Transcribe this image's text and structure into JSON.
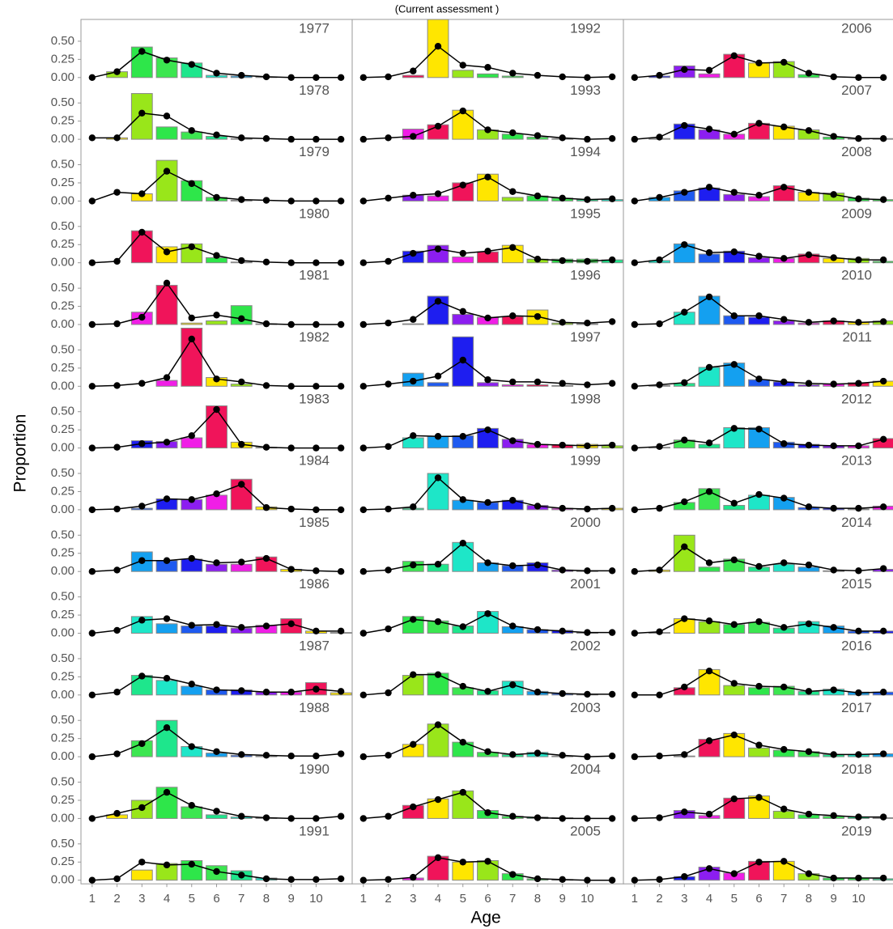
{
  "chart_data": {
    "type": "bar",
    "subtitle": "(Current assessment )",
    "x_label": "Age",
    "y_label": "Proportion",
    "columns": 3,
    "rows": 14,
    "x": [
      1,
      2,
      3,
      4,
      5,
      6,
      7,
      8,
      9,
      10,
      11
    ],
    "xlim": [
      0.55,
      11.45
    ],
    "xticks": [
      1,
      2,
      3,
      4,
      5,
      6,
      7,
      8,
      9,
      10
    ],
    "ylim": [
      -0.05,
      0.8
    ],
    "yticks": [
      {
        "value": 0,
        "label": "0.00"
      },
      {
        "value": 0.25,
        "label": "0.25"
      },
      {
        "value": 0.5,
        "label": "0.50"
      }
    ],
    "cohort_palette": [
      "#1e1ef0",
      "#1e5af0",
      "#14a0f0",
      "#1ee6c8",
      "#1ee68c",
      "#3ce650",
      "#2ee64a",
      "#99e61a",
      "#ffe600",
      "#f0145a",
      "#f01ee6",
      "#8c1ef0"
    ],
    "bar_stroke": "#888888",
    "line_color": "#000000",
    "panels": [
      {
        "year": "1977",
        "observed": [
          0,
          0.08,
          0.42,
          0.27,
          0.2,
          0.03,
          0.02,
          0.01,
          0,
          0,
          0
        ],
        "expected": [
          0,
          0.08,
          0.36,
          0.24,
          0.18,
          0.06,
          0.03,
          0.01,
          0,
          0,
          0
        ]
      },
      {
        "year": "1978",
        "observed": [
          0,
          0.02,
          0.63,
          0.17,
          0.1,
          0.04,
          0.01,
          0,
          0,
          0,
          0
        ],
        "expected": [
          0.02,
          0.02,
          0.36,
          0.32,
          0.12,
          0.06,
          0.02,
          0.01,
          0,
          0,
          0
        ]
      },
      {
        "year": "1979",
        "observed": [
          0,
          0,
          0.1,
          0.56,
          0.28,
          0.05,
          0.01,
          0,
          0,
          0,
          0
        ],
        "expected": [
          0,
          0.12,
          0.1,
          0.41,
          0.24,
          0.05,
          0.02,
          0.01,
          0,
          0,
          0
        ]
      },
      {
        "year": "1980",
        "observed": [
          0,
          0,
          0.44,
          0.22,
          0.26,
          0.07,
          0.01,
          0,
          0,
          0,
          0
        ],
        "expected": [
          0,
          0.02,
          0.42,
          0.15,
          0.22,
          0.1,
          0.03,
          0.01,
          0,
          0,
          0
        ]
      },
      {
        "year": "1981",
        "observed": [
          0,
          0,
          0.17,
          0.54,
          0.02,
          0.05,
          0.26,
          0.01,
          0,
          0,
          0
        ],
        "expected": [
          0,
          0.01,
          0.1,
          0.57,
          0.09,
          0.13,
          0.08,
          0.01,
          0,
          0,
          0
        ]
      },
      {
        "year": "1982",
        "observed": [
          0,
          0,
          0,
          0.08,
          0.8,
          0.12,
          0.03,
          0,
          0,
          0,
          0
        ],
        "expected": [
          0,
          0.01,
          0.04,
          0.12,
          0.65,
          0.1,
          0.06,
          0.01,
          0,
          0,
          0
        ]
      },
      {
        "year": "1983",
        "observed": [
          0,
          0,
          0.1,
          0.09,
          0.14,
          0.58,
          0.08,
          0.01,
          0,
          0,
          0
        ],
        "expected": [
          0,
          0.01,
          0.06,
          0.08,
          0.17,
          0.53,
          0.05,
          0.01,
          0,
          0,
          0
        ]
      },
      {
        "year": "1984",
        "observed": [
          0,
          0,
          0.02,
          0.15,
          0.14,
          0.2,
          0.42,
          0.04,
          0,
          0,
          0
        ],
        "expected": [
          0,
          0.01,
          0.05,
          0.15,
          0.14,
          0.22,
          0.35,
          0.03,
          0.01,
          0,
          0
        ]
      },
      {
        "year": "1985",
        "observed": [
          0,
          0,
          0.27,
          0.15,
          0.17,
          0.1,
          0.1,
          0.2,
          0.03,
          0,
          0
        ],
        "expected": [
          0,
          0.02,
          0.15,
          0.15,
          0.18,
          0.12,
          0.13,
          0.18,
          0.03,
          0.01,
          0
        ]
      },
      {
        "year": "1986",
        "observed": [
          0,
          0,
          0.23,
          0.13,
          0.1,
          0.1,
          0.07,
          0.11,
          0.2,
          0.03,
          0.01
        ],
        "expected": [
          0,
          0.04,
          0.18,
          0.2,
          0.11,
          0.12,
          0.08,
          0.1,
          0.13,
          0.03,
          0.03
        ]
      },
      {
        "year": "1987",
        "observed": [
          0,
          0,
          0.27,
          0.2,
          0.12,
          0.07,
          0.07,
          0.04,
          0.04,
          0.17,
          0.03
        ],
        "expected": [
          0,
          0.04,
          0.26,
          0.23,
          0.15,
          0.07,
          0.06,
          0.04,
          0.04,
          0.08,
          0.05
        ]
      },
      {
        "year": "1988",
        "observed": [
          0,
          0,
          0.22,
          0.5,
          0.14,
          0.05,
          0.02,
          0.01,
          0,
          0,
          0
        ],
        "expected": [
          0,
          0.04,
          0.18,
          0.4,
          0.14,
          0.07,
          0.03,
          0.02,
          0.01,
          0.01,
          0.04
        ]
      },
      {
        "year": "1990",
        "observed": [
          0,
          0.05,
          0.25,
          0.43,
          0.16,
          0.05,
          0.02,
          0.01,
          0,
          0,
          0
        ],
        "expected": [
          0,
          0.07,
          0.15,
          0.36,
          0.18,
          0.1,
          0.03,
          0.01,
          0,
          0,
          0.03
        ]
      },
      {
        "year": "1991",
        "observed": [
          0,
          0,
          0.14,
          0.23,
          0.27,
          0.2,
          0.13,
          0.03,
          0,
          0,
          0
        ],
        "expected": [
          0,
          0.02,
          0.25,
          0.21,
          0.22,
          0.12,
          0.07,
          0.02,
          0.01,
          0.01,
          0.02
        ]
      },
      {
        "year": "1992",
        "observed": [
          0,
          0,
          0.03,
          0.8,
          0.1,
          0.05,
          0.02,
          0,
          0,
          0,
          0
        ],
        "expected": [
          0,
          0.01,
          0.09,
          0.43,
          0.17,
          0.14,
          0.06,
          0.03,
          0.01,
          0,
          0.01
        ]
      },
      {
        "year": "1993",
        "observed": [
          0,
          0,
          0.14,
          0.2,
          0.4,
          0.13,
          0.07,
          0.03,
          0.01,
          0,
          0
        ],
        "expected": [
          0,
          0.02,
          0.04,
          0.18,
          0.39,
          0.13,
          0.09,
          0.05,
          0.02,
          0,
          0.01
        ]
      },
      {
        "year": "1994",
        "observed": [
          0,
          0,
          0.08,
          0.07,
          0.25,
          0.37,
          0.05,
          0.07,
          0.04,
          0.02,
          0.02
        ],
        "expected": [
          0,
          0.04,
          0.08,
          0.1,
          0.22,
          0.33,
          0.13,
          0.07,
          0.04,
          0.02,
          0.03
        ]
      },
      {
        "year": "1995",
        "observed": [
          0,
          0,
          0.16,
          0.24,
          0.08,
          0.15,
          0.24,
          0.05,
          0.05,
          0.05,
          0.04
        ],
        "expected": [
          0,
          0.02,
          0.13,
          0.19,
          0.13,
          0.16,
          0.21,
          0.05,
          0.03,
          0.02,
          0.04
        ]
      },
      {
        "year": "1996",
        "observed": [
          0,
          0,
          0.01,
          0.39,
          0.14,
          0.1,
          0.11,
          0.2,
          0.02,
          0.01,
          0
        ],
        "expected": [
          0,
          0.02,
          0.07,
          0.32,
          0.18,
          0.09,
          0.12,
          0.11,
          0.03,
          0.02,
          0.04
        ]
      },
      {
        "year": "1997",
        "observed": [
          0,
          0,
          0.18,
          0.05,
          0.68,
          0.05,
          0.02,
          0.02,
          0.01,
          0,
          0
        ],
        "expected": [
          0,
          0.03,
          0.07,
          0.14,
          0.36,
          0.09,
          0.06,
          0.06,
          0.04,
          0.02,
          0.04
        ]
      },
      {
        "year": "1998",
        "observed": [
          0,
          0,
          0.14,
          0.16,
          0.17,
          0.27,
          0.12,
          0.05,
          0.04,
          0.05,
          0.03
        ],
        "expected": [
          0,
          0.02,
          0.17,
          0.16,
          0.16,
          0.25,
          0.1,
          0.05,
          0.04,
          0.03,
          0.04
        ]
      },
      {
        "year": "1999",
        "observed": [
          0,
          0,
          0.02,
          0.5,
          0.13,
          0.1,
          0.13,
          0.06,
          0.02,
          0.01,
          0.02
        ],
        "expected": [
          0,
          0.01,
          0.04,
          0.44,
          0.14,
          0.1,
          0.13,
          0.05,
          0.02,
          0.01,
          0.02
        ]
      },
      {
        "year": "2000",
        "observed": [
          0,
          0,
          0.14,
          0.1,
          0.4,
          0.12,
          0.08,
          0.12,
          0.02,
          0.01,
          0
        ],
        "expected": [
          0,
          0.02,
          0.09,
          0.1,
          0.39,
          0.12,
          0.08,
          0.09,
          0.02,
          0.01,
          0.01
        ]
      },
      {
        "year": "2001",
        "observed": [
          0,
          0,
          0.23,
          0.17,
          0.1,
          0.3,
          0.09,
          0.05,
          0.04,
          0.01,
          0
        ],
        "expected": [
          0,
          0.06,
          0.19,
          0.16,
          0.09,
          0.27,
          0.1,
          0.05,
          0.03,
          0.01,
          0.01
        ]
      },
      {
        "year": "2002",
        "observed": [
          0,
          0,
          0.27,
          0.3,
          0.1,
          0.06,
          0.19,
          0.05,
          0.02,
          0.01,
          0
        ],
        "expected": [
          0,
          0.03,
          0.28,
          0.28,
          0.12,
          0.05,
          0.14,
          0.04,
          0.02,
          0.01,
          0.01
        ]
      },
      {
        "year": "2003",
        "observed": [
          0,
          0,
          0.17,
          0.45,
          0.2,
          0.06,
          0.03,
          0.06,
          0.01,
          0,
          0
        ],
        "expected": [
          0,
          0.02,
          0.17,
          0.44,
          0.2,
          0.07,
          0.03,
          0.05,
          0.02,
          0,
          0.01
        ]
      },
      {
        "year": "2004",
        "observed": [
          0,
          0,
          0.18,
          0.27,
          0.38,
          0.11,
          0.03,
          0.02,
          0.01,
          0,
          0
        ],
        "expected": [
          0,
          0.03,
          0.16,
          0.26,
          0.36,
          0.08,
          0.03,
          0.01,
          0,
          0,
          0
        ]
      },
      {
        "year": "2005",
        "observed": [
          0,
          0,
          0.03,
          0.33,
          0.25,
          0.27,
          0.09,
          0.02,
          0.01,
          0,
          0
        ],
        "expected": [
          0,
          0.01,
          0.04,
          0.31,
          0.25,
          0.26,
          0.08,
          0.02,
          0.01,
          0,
          0
        ]
      },
      {
        "year": "2006",
        "observed": [
          0,
          0.02,
          0.16,
          0.05,
          0.32,
          0.2,
          0.22,
          0.04,
          0,
          0,
          0
        ],
        "expected": [
          0,
          0.03,
          0.11,
          0.1,
          0.3,
          0.2,
          0.21,
          0.06,
          0.01,
          0,
          0
        ]
      },
      {
        "year": "2007",
        "observed": [
          0,
          0.01,
          0.21,
          0.13,
          0.07,
          0.22,
          0.18,
          0.13,
          0.03,
          0.01,
          0.01
        ],
        "expected": [
          0,
          0.03,
          0.19,
          0.14,
          0.07,
          0.22,
          0.17,
          0.12,
          0.04,
          0.01,
          0.01
        ]
      },
      {
        "year": "2008",
        "observed": [
          0,
          0.05,
          0.14,
          0.18,
          0.09,
          0.06,
          0.21,
          0.12,
          0.11,
          0.04,
          0.02
        ],
        "expected": [
          0,
          0.05,
          0.12,
          0.19,
          0.12,
          0.08,
          0.19,
          0.12,
          0.09,
          0.03,
          0.02
        ]
      },
      {
        "year": "2009",
        "observed": [
          0,
          0.03,
          0.26,
          0.12,
          0.16,
          0.07,
          0.06,
          0.12,
          0.06,
          0.06,
          0.02
        ],
        "expected": [
          0,
          0.04,
          0.25,
          0.14,
          0.15,
          0.09,
          0.06,
          0.11,
          0.07,
          0.04,
          0.04
        ]
      },
      {
        "year": "2010",
        "observed": [
          0,
          0,
          0.17,
          0.39,
          0.12,
          0.1,
          0.05,
          0.02,
          0.05,
          0.03,
          0.05
        ],
        "expected": [
          0,
          0.01,
          0.17,
          0.38,
          0.12,
          0.12,
          0.07,
          0.03,
          0.05,
          0.03,
          0.04
        ]
      },
      {
        "year": "2011",
        "observed": [
          0,
          0.01,
          0.04,
          0.26,
          0.32,
          0.09,
          0.06,
          0.02,
          0.03,
          0.05,
          0.07
        ],
        "expected": [
          0,
          0.02,
          0.05,
          0.26,
          0.3,
          0.1,
          0.06,
          0.04,
          0.03,
          0.04,
          0.07
        ]
      },
      {
        "year": "2012",
        "observed": [
          0,
          0.01,
          0.11,
          0.05,
          0.28,
          0.28,
          0.08,
          0.05,
          0.03,
          0.03,
          0.13
        ],
        "expected": [
          0,
          0.02,
          0.11,
          0.07,
          0.27,
          0.26,
          0.06,
          0.04,
          0.03,
          0.03,
          0.12
        ]
      },
      {
        "year": "2013",
        "observed": [
          0,
          0,
          0.1,
          0.29,
          0.06,
          0.2,
          0.17,
          0.03,
          0.02,
          0.01,
          0.05
        ],
        "expected": [
          0,
          0.02,
          0.11,
          0.25,
          0.09,
          0.21,
          0.16,
          0.04,
          0.02,
          0.02,
          0.04
        ]
      },
      {
        "year": "2014",
        "observed": [
          0,
          0.02,
          0.5,
          0.06,
          0.17,
          0.06,
          0.1,
          0.06,
          0.01,
          0,
          0.03
        ],
        "expected": [
          0,
          0.02,
          0.34,
          0.12,
          0.16,
          0.07,
          0.12,
          0.09,
          0.02,
          0.01,
          0.04
        ]
      },
      {
        "year": "2015",
        "observed": [
          0,
          0.01,
          0.2,
          0.16,
          0.12,
          0.15,
          0.07,
          0.16,
          0.1,
          0.03,
          0.03
        ],
        "expected": [
          0,
          0.02,
          0.2,
          0.17,
          0.12,
          0.16,
          0.08,
          0.13,
          0.08,
          0.03,
          0.03
        ]
      },
      {
        "year": "2016",
        "observed": [
          0,
          0,
          0.1,
          0.35,
          0.13,
          0.1,
          0.12,
          0.05,
          0.08,
          0.04,
          0.04
        ],
        "expected": [
          0,
          0,
          0.11,
          0.33,
          0.16,
          0.12,
          0.11,
          0.05,
          0.07,
          0.03,
          0.04
        ]
      },
      {
        "year": "2017",
        "observed": [
          0,
          0,
          0.01,
          0.24,
          0.32,
          0.12,
          0.09,
          0.07,
          0.03,
          0.03,
          0.04
        ],
        "expected": [
          0,
          0.01,
          0.03,
          0.22,
          0.3,
          0.16,
          0.1,
          0.07,
          0.03,
          0.03,
          0.04
        ]
      },
      {
        "year": "2018",
        "observed": [
          0,
          0,
          0.11,
          0.04,
          0.28,
          0.31,
          0.1,
          0.05,
          0.03,
          0.02,
          0.01
        ],
        "expected": [
          0,
          0.01,
          0.09,
          0.06,
          0.27,
          0.29,
          0.13,
          0.06,
          0.04,
          0.02,
          0.02
        ]
      },
      {
        "year": "2019",
        "observed": [
          0,
          0,
          0.05,
          0.18,
          0.1,
          0.26,
          0.26,
          0.09,
          0.03,
          0.03,
          0.02
        ],
        "expected": [
          0,
          0.01,
          0.05,
          0.16,
          0.09,
          0.25,
          0.26,
          0.09,
          0.03,
          0.03,
          0.03
        ]
      }
    ]
  }
}
